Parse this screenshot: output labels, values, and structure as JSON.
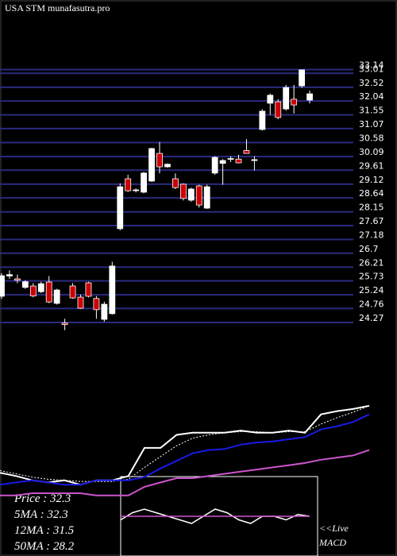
{
  "chart_data": [
    {
      "type": "candlestick",
      "title": "USA STM munafasutra.pro",
      "open": [
        25.19,
        25.9,
        25.8,
        25.5,
        25.55,
        25.35,
        25.69,
        24.94,
        24.25,
        25.55,
        25.16,
        25.66,
        25.11,
        24.38,
        24.58,
        27.56,
        29.31,
        28.9,
        28.84,
        29.23,
        30.2,
        29.73,
        29.31,
        29.12,
        28.56,
        29.06,
        28.28,
        29.51,
        29.85,
        30.0,
        30.0,
        30.3,
        29.95,
        31.04,
        31.96,
        32.01,
        31.76,
        32.1,
        32.57,
        32.07
      ],
      "high": [
        26.0,
        26.1,
        25.95,
        25.75,
        25.65,
        25.7,
        25.9,
        25.45,
        24.4,
        25.65,
        25.25,
        25.7,
        25.2,
        25.0,
        26.4,
        29.15,
        29.45,
        28.97,
        29.55,
        30.4,
        30.6,
        29.85,
        29.5,
        29.15,
        29.0,
        29.1,
        29.1,
        30.1,
        30.0,
        30.1,
        30.15,
        30.7,
        30.1,
        31.75,
        32.3,
        32.1,
        32.6,
        32.6,
        33.14,
        32.4
      ],
      "low": [
        25.1,
        25.8,
        25.65,
        25.45,
        25.15,
        25.3,
        24.95,
        24.9,
        24.0,
        25.1,
        24.75,
        25.15,
        24.4,
        24.3,
        24.55,
        27.5,
        28.85,
        28.83,
        28.8,
        29.2,
        29.5,
        29.7,
        28.95,
        28.55,
        28.5,
        28.3,
        28.25,
        29.45,
        29.1,
        29.9,
        29.85,
        30.2,
        29.6,
        31.0,
        31.55,
        31.4,
        31.7,
        31.6,
        32.5,
        31.95
      ],
      "close": [
        25.91,
        25.95,
        25.75,
        25.7,
        25.2,
        25.63,
        24.99,
        25.41,
        24.2,
        25.13,
        24.77,
        25.19,
        24.72,
        24.91,
        26.25,
        29.03,
        28.89,
        28.92,
        29.51,
        30.37,
        29.73,
        29.82,
        29.0,
        28.62,
        28.95,
        28.39,
        29.03,
        30.06,
        29.95,
        30.02,
        29.87,
        30.2,
        29.98,
        31.68,
        32.24,
        31.46,
        32.51,
        31.9,
        33.13,
        32.29
      ],
      "up_color": "#ffffff",
      "down_color": "#cc0000",
      "grid_color": "#2a2a80",
      "ylim": [
        23.88,
        35.58
      ],
      "yticks": [
        33.14,
        33.01,
        32.52,
        32.04,
        31.55,
        31.07,
        30.58,
        30.09,
        29.61,
        29.12,
        28.64,
        28.15,
        27.67,
        27.18,
        26.7,
        26.21,
        25.73,
        25.24,
        24.76,
        24.27
      ]
    },
    {
      "type": "line",
      "ylim": [
        18.4,
        37.5
      ],
      "series": [
        {
          "name": "Price  : 32.3",
          "color": "#ffffff",
          "dash": false,
          "values": [
            26.1,
            25.8,
            25.4,
            25.2,
            25.4,
            25.0,
            25.4,
            25.4,
            25.8,
            28.4,
            28.4,
            29.6,
            29.8,
            29.8,
            29.8,
            30.0,
            29.8,
            29.8,
            30.0,
            29.8,
            31.5,
            31.8,
            32.0,
            32.3
          ]
        },
        {
          "name": "5MA : 32.3",
          "color": "#ffffff",
          "dash": true,
          "values": [
            26.3,
            26.0,
            25.7,
            25.5,
            25.4,
            25.3,
            25.3,
            25.3,
            25.5,
            26.6,
            27.6,
            28.6,
            29.3,
            29.6,
            29.8,
            29.9,
            29.9,
            29.8,
            29.9,
            29.9,
            30.6,
            31.2,
            31.7,
            32.3
          ]
        },
        {
          "name": "12MA : 31.5",
          "color": "#1a1ae6",
          "dash": false,
          "values": [
            25.0,
            25.2,
            25.4,
            25.2,
            25.0,
            25.0,
            25.4,
            25.4,
            25.4,
            25.7,
            26.5,
            27.2,
            27.9,
            28.2,
            28.3,
            28.7,
            28.9,
            29.0,
            29.2,
            29.4,
            30.1,
            30.4,
            30.8,
            31.5
          ]
        },
        {
          "name": "50MA : 28.2",
          "color": "#cc55cc",
          "dash": false,
          "values": [
            24.0,
            24.0,
            24.2,
            24.2,
            24.2,
            24.2,
            24.0,
            24.0,
            24.0,
            24.8,
            25.2,
            25.6,
            25.6,
            25.8,
            26.0,
            26.2,
            26.4,
            26.6,
            26.8,
            27.0,
            27.3,
            27.5,
            27.7,
            28.2
          ]
        }
      ]
    },
    {
      "type": "macd",
      "label_top": "<<Live",
      "label_bottom": "MACD",
      "ylim": [
        -1,
        1
      ],
      "series": [
        {
          "color": "#ffffff",
          "values": [
            -0.1,
            0.1,
            0.2,
            0.1,
            0,
            -0.1,
            -0.2,
            0,
            0.2,
            0.1,
            -0.1,
            -0.2,
            0,
            0,
            -0.1,
            0.05,
            0
          ]
        },
        {
          "color": "#cc55cc",
          "values": [
            0,
            0,
            0,
            0,
            0,
            0,
            0,
            0,
            0,
            0,
            0,
            0,
            0,
            0,
            0,
            0,
            0
          ]
        }
      ]
    }
  ]
}
